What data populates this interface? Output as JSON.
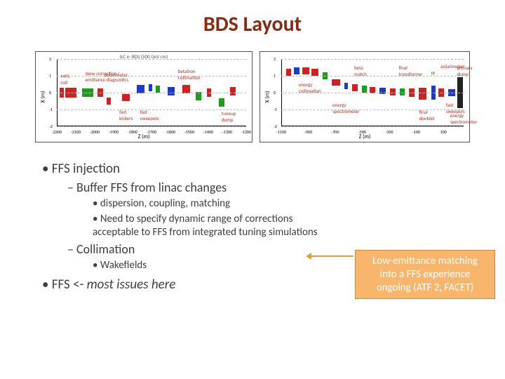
{
  "title": "BDS Layout",
  "chart_left": {
    "type": "beamline-layout",
    "title": "ILC e- BDS (500 GeV cm)",
    "xlabel": "Z (m)",
    "ylabel": "X (m)",
    "xlim": [
      -2200,
      -1200
    ],
    "xtick_step": 100,
    "ylim": [
      -2,
      2
    ],
    "ytick_step": 1,
    "background_color": "#ffffff",
    "colors": {
      "red": "#d22020",
      "green": "#1a9e1a",
      "blue": "#1a3ad2"
    },
    "elements": [
      {
        "z0": -2190,
        "z1": -2165,
        "x": 0,
        "h": 0.6,
        "color": "red"
      },
      {
        "z0": -2160,
        "z1": -2100,
        "x": 0,
        "h": 0.6,
        "color": "red"
      },
      {
        "z0": -2070,
        "z1": -2010,
        "x": 0,
        "h": 0.5,
        "color": "green"
      },
      {
        "z0": -1990,
        "z1": -1960,
        "x": 0,
        "h": 0.5,
        "color": "red"
      },
      {
        "z0": -1940,
        "z1": -1920,
        "x": -0.5,
        "h": 0.4,
        "color": "red"
      },
      {
        "z0": -1860,
        "z1": -1820,
        "x": -0.3,
        "h": 0.4,
        "color": "red"
      },
      {
        "z0": -1780,
        "z1": -1740,
        "x": 0.2,
        "h": 0.5,
        "color": "blue"
      },
      {
        "z0": -1720,
        "z1": -1700,
        "x": 0.3,
        "h": 0.4,
        "color": "blue"
      },
      {
        "z0": -1680,
        "z1": -1660,
        "x": 0.2,
        "h": 0.4,
        "color": "green"
      },
      {
        "z0": -1620,
        "z1": -1580,
        "x": 0.1,
        "h": 0.5,
        "color": "blue"
      },
      {
        "z0": -1540,
        "z1": -1500,
        "x": 0.2,
        "h": 0.5,
        "color": "red"
      },
      {
        "z0": -1470,
        "z1": -1440,
        "x": -0.2,
        "h": 0.5,
        "color": "green"
      },
      {
        "z0": -1410,
        "z1": -1390,
        "x": 0,
        "h": 0.5,
        "color": "red"
      },
      {
        "z0": -1350,
        "z1": -1320,
        "x": -0.6,
        "h": 0.5,
        "color": "green"
      },
      {
        "z0": -1290,
        "z1": -1260,
        "x": 0.1,
        "h": 0.5,
        "color": "red"
      }
    ],
    "annotations": [
      {
        "label": "MPS\ncoll",
        "z": -2180,
        "x": 0.9
      },
      {
        "label": "skew correction /\nemittance diagnostics",
        "z": -2050,
        "x": 1.1
      },
      {
        "label": "polarimeter",
        "z": -1950,
        "x": 1.0
      },
      {
        "label": "fast\nkickers",
        "z": -1870,
        "x": -1.2
      },
      {
        "label": "fast\nsweepers",
        "z": -1760,
        "x": -1.2
      },
      {
        "label": "betatron\ncollimation",
        "z": -1560,
        "x": 1.2
      },
      {
        "label": "tuneup\ndump",
        "z": -1330,
        "x": -1.3
      }
    ]
  },
  "chart_right": {
    "type": "beamline-layout",
    "xlabel": "Z (m)",
    "ylabel": "X (m)",
    "xlim": [
      -1100,
      250
    ],
    "xtick_step": 200,
    "ylim": [
      -2,
      2
    ],
    "ytick_step": 1,
    "background_color": "#ffffff",
    "colors": {
      "red": "#d22020",
      "green": "#1a9e1a",
      "blue": "#1a3ad2"
    },
    "elements": [
      {
        "z0": -1070,
        "z1": -1030,
        "x": 1.2,
        "h": 0.4,
        "color": "red"
      },
      {
        "z0": -1010,
        "z1": -970,
        "x": 1.3,
        "h": 0.4,
        "color": "blue"
      },
      {
        "z0": -950,
        "z1": -900,
        "x": 1.3,
        "h": 0.4,
        "color": "red"
      },
      {
        "z0": -880,
        "z1": -830,
        "x": 1.2,
        "h": 0.4,
        "color": "red"
      },
      {
        "z0": -800,
        "z1": -760,
        "x": 1.0,
        "h": 0.4,
        "color": "green"
      },
      {
        "z0": -730,
        "z1": -670,
        "x": 0.6,
        "h": 0.4,
        "color": "red"
      },
      {
        "z0": -640,
        "z1": -610,
        "x": 0.4,
        "h": 0.4,
        "color": "blue"
      },
      {
        "z0": -580,
        "z1": -540,
        "x": 0.3,
        "h": 0.4,
        "color": "red"
      },
      {
        "z0": -510,
        "z1": -470,
        "x": 0.2,
        "h": 0.4,
        "color": "green"
      },
      {
        "z0": -450,
        "z1": -410,
        "x": 0.15,
        "h": 0.4,
        "color": "red"
      },
      {
        "z0": -380,
        "z1": -330,
        "x": 0.1,
        "h": 0.4,
        "color": "blue"
      },
      {
        "z0": -300,
        "z1": -260,
        "x": 0.05,
        "h": 0.4,
        "color": "red"
      },
      {
        "z0": -230,
        "z1": -190,
        "x": 0.03,
        "h": 0.4,
        "color": "green"
      },
      {
        "z0": -160,
        "z1": -120,
        "x": 0,
        "h": 0.5,
        "color": "red"
      },
      {
        "z0": -90,
        "z1": -30,
        "x": -0.05,
        "h": 0.7,
        "color": "red"
      },
      {
        "z0": 5,
        "z1": 35,
        "x": 0,
        "h": 0.8,
        "color": "blue"
      },
      {
        "z0": 60,
        "z1": 100,
        "x": 0,
        "h": 0.5,
        "color": "red"
      },
      {
        "z0": 130,
        "z1": 180,
        "x": 0,
        "h": 0.4,
        "color": "blue"
      },
      {
        "z0": 200,
        "z1": 240,
        "x": 0,
        "h": 1.8,
        "color": "#222"
      }
    ],
    "annotations": [
      {
        "label": "energy\ncollimation",
        "z": -970,
        "x": 0.4
      },
      {
        "label": "beta\nmatch",
        "z": -560,
        "x": 1.4
      },
      {
        "label": "final\ntransformer",
        "z": -230,
        "x": 1.4
      },
      {
        "label": "energy\nspectrometer",
        "z": -720,
        "x": -0.8
      },
      {
        "label": "final\ndoublet",
        "z": -80,
        "x": -1.2
      },
      {
        "label": "IP",
        "z": 10,
        "x": 1.1
      },
      {
        "label": "polarimeter",
        "z": 80,
        "x": 1.5
      },
      {
        "label": "primary\ndump",
        "z": 200,
        "x": 1.4
      },
      {
        "label": "fast\nsweepers",
        "z": 120,
        "x": -0.8
      },
      {
        "label": "energy\nspectrometer",
        "z": 150,
        "x": -1.4
      }
    ]
  },
  "bullets": {
    "l1a": "FFS injection",
    "l2a": "Buffer FFS from linac changes",
    "l3a": "dispersion, coupling, matching",
    "l3b": "Need to specify dynamic range of corrections acceptable to FFS from integrated tuning simulations",
    "l2b": "Collimation",
    "l3c": "Wakefields",
    "l1b_prefix": "FFS <- ",
    "l1b_em": "most issues here"
  },
  "callout": {
    "background": "#f7b66b",
    "border": "#c08a42",
    "text_color": "#ffffff",
    "arrow_color": "#e59b3b",
    "line1": "Low-emittance matching",
    "line2": "into a FFS experience",
    "line3": "ongoing (ATF 2, FACET)"
  }
}
